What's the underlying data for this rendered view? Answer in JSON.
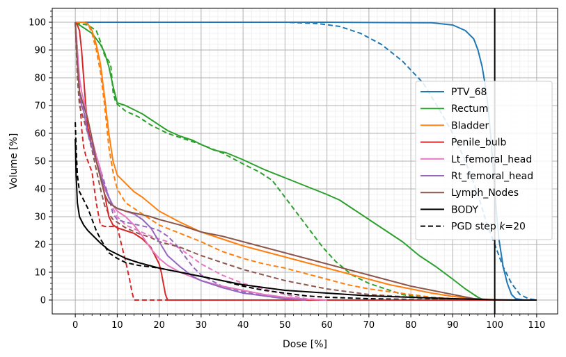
{
  "chart_data": {
    "type": "line",
    "title": "",
    "xlabel": "Dose [%]",
    "ylabel": "Volume [%]",
    "xlim": [
      -5.5,
      115
    ],
    "ylim": [
      -5,
      105
    ],
    "xticks": [
      0,
      10,
      20,
      30,
      40,
      50,
      60,
      70,
      80,
      90,
      100,
      110
    ],
    "yticks": [
      0,
      10,
      20,
      30,
      40,
      50,
      60,
      70,
      80,
      90,
      100
    ],
    "grid": true,
    "vline_x": 100,
    "legend_position": "center-right",
    "legend": [
      {
        "label": "PTV_68",
        "color": "#1f77b4",
        "dashed": false
      },
      {
        "label": "Rectum",
        "color": "#2ca02c",
        "dashed": false
      },
      {
        "label": "Bladder",
        "color": "#ff7f0e",
        "dashed": false
      },
      {
        "label": "Penile_bulb",
        "color": "#d62728",
        "dashed": false
      },
      {
        "label": "Lt_femoral_head",
        "color": "#e377c2",
        "dashed": false
      },
      {
        "label": "Rt_femoral_head",
        "color": "#9467bd",
        "dashed": false
      },
      {
        "label": "Lymph_Nodes",
        "color": "#8c564b",
        "dashed": false
      },
      {
        "label": "BODY",
        "color": "#000000",
        "dashed": false
      },
      {
        "label": "PGD step k=20",
        "label_prefix": "PGD step ",
        "label_var": "k",
        "label_suffix": "=20",
        "color": "#000000",
        "dashed": true
      }
    ],
    "series": [
      {
        "name": "PTV_68",
        "style": "solid",
        "color": "#1f77b4",
        "x": [
          0,
          60,
          85,
          90,
          93,
          95,
          96,
          97,
          98,
          98.5,
          99,
          99.5,
          100,
          100.5,
          101,
          102,
          103,
          104,
          105,
          107,
          110
        ],
        "y": [
          100,
          100,
          99.8,
          99,
          97,
          94,
          90,
          84,
          75,
          68,
          60,
          50,
          40,
          30,
          22,
          12,
          6,
          2,
          0.5,
          0,
          0
        ]
      },
      {
        "name": "PTV_68 PGD",
        "style": "dashed",
        "color": "#1f77b4",
        "x": [
          0,
          50,
          58,
          63,
          68,
          73,
          78,
          83,
          87,
          90,
          93,
          96,
          98,
          100,
          102,
          104,
          106,
          108,
          110
        ],
        "y": [
          100,
          100,
          99.5,
          98.5,
          96,
          92,
          86,
          78,
          68,
          60,
          50,
          38,
          28,
          20,
          12,
          6,
          2,
          0.5,
          0
        ]
      },
      {
        "name": "Rectum",
        "style": "solid",
        "color": "#2ca02c",
        "x": [
          0,
          1,
          2,
          3,
          4,
          5,
          6,
          7,
          8,
          9,
          10,
          12,
          14,
          16,
          18,
          20,
          22,
          25,
          28,
          30,
          33,
          36,
          40,
          45,
          50,
          55,
          60,
          63,
          66,
          70,
          74,
          78,
          82,
          86,
          90,
          93,
          96,
          97,
          98,
          100
        ],
        "y": [
          100,
          99,
          98,
          97,
          96,
          94,
          92,
          89,
          84,
          77,
          71,
          70,
          68.5,
          67,
          65,
          63,
          61,
          59,
          57.5,
          56,
          54,
          53,
          50.5,
          47,
          44,
          41,
          38,
          36,
          33,
          29,
          25,
          21,
          16,
          12,
          7.5,
          4,
          1,
          0.3,
          0,
          0
        ]
      },
      {
        "name": "Rectum PGD",
        "style": "dashed",
        "color": "#2ca02c",
        "x": [
          0,
          1,
          3,
          5,
          6,
          7,
          8,
          8.5,
          9,
          9.5,
          10,
          12,
          15,
          18,
          22,
          26,
          30,
          35,
          40,
          44,
          47,
          50,
          53,
          56,
          59,
          62,
          66,
          70,
          74,
          78,
          82,
          86,
          90,
          95,
          100
        ],
        "y": [
          100,
          99.5,
          99,
          97,
          93,
          88,
          86,
          84,
          75,
          72,
          70.5,
          68,
          66,
          63,
          60,
          58,
          56,
          53,
          49,
          46,
          43,
          37,
          31,
          25,
          19,
          14,
          9,
          6,
          4,
          2,
          1,
          0.5,
          0.2,
          0,
          0
        ]
      },
      {
        "name": "Bladder",
        "style": "solid",
        "color": "#ff7f0e",
        "x": [
          0,
          1,
          2,
          3,
          4,
          5,
          6,
          7,
          8,
          9,
          10,
          12,
          14,
          16,
          18,
          20,
          25,
          30,
          35,
          40,
          45,
          50,
          55,
          60,
          65,
          70,
          75,
          80,
          85,
          90,
          95,
          100
        ],
        "y": [
          100,
          100,
          100,
          99.5,
          97,
          92,
          85,
          73,
          60,
          50,
          45,
          42,
          39,
          37,
          34.5,
          32,
          28,
          24.5,
          22,
          19.5,
          17.5,
          15.5,
          13.5,
          11.5,
          9.5,
          7.5,
          5.5,
          4,
          2.5,
          1.3,
          0.5,
          0.1
        ]
      },
      {
        "name": "Bladder PGD",
        "style": "dashed",
        "color": "#ff7f0e",
        "x": [
          0,
          1,
          2,
          3,
          4,
          5,
          6,
          7,
          8,
          9,
          10,
          12,
          15,
          18,
          20,
          25,
          30,
          35,
          40,
          45,
          50,
          55,
          60,
          65,
          70,
          75,
          80,
          85,
          90,
          95,
          100
        ],
        "y": [
          100,
          100,
          100,
          99.5,
          96,
          90,
          82,
          70,
          55,
          46,
          40,
          35,
          32,
          29,
          27,
          24,
          21,
          17.5,
          15,
          13,
          11.5,
          9.5,
          7.5,
          5.5,
          4,
          3,
          2,
          1,
          0.5,
          0.1,
          0
        ]
      },
      {
        "name": "Penile_bulb",
        "style": "solid",
        "color": "#d62728",
        "x": [
          0,
          0.5,
          1,
          1.5,
          2,
          2.5,
          3,
          4,
          5,
          6,
          7,
          8,
          9,
          10,
          12,
          14,
          16,
          18,
          19,
          20,
          20.5,
          21,
          21.5,
          22,
          25,
          110
        ],
        "y": [
          100,
          99,
          97,
          90,
          80,
          70,
          62,
          55,
          50,
          45,
          38,
          30,
          27,
          26,
          25,
          24,
          22,
          19,
          16,
          13,
          10,
          6,
          2,
          0,
          0,
          0
        ]
      },
      {
        "name": "Penile_bulb PGD",
        "style": "dashed",
        "color": "#d62728",
        "x": [
          0,
          0.5,
          1,
          1.5,
          2,
          2.5,
          3,
          4,
          5,
          6,
          7,
          8,
          9,
          10,
          11,
          12,
          13,
          13.5,
          14,
          14.5,
          20,
          110
        ],
        "y": [
          100,
          90,
          75,
          62,
          55,
          52,
          50,
          46,
          35,
          27,
          26.5,
          26.5,
          26.5,
          26.5,
          20,
          14,
          7,
          3,
          0,
          0,
          0,
          0
        ]
      },
      {
        "name": "Lt_femoral_head",
        "style": "solid",
        "color": "#e377c2",
        "x": [
          0,
          0.5,
          1,
          1.5,
          2,
          3,
          4,
          5,
          6,
          7,
          8,
          9,
          10,
          12,
          14,
          16,
          18,
          20,
          22,
          25,
          30,
          35,
          40,
          45,
          50,
          55,
          60
        ],
        "y": [
          100,
          90,
          80,
          75,
          72,
          65,
          58,
          52,
          47,
          40,
          37,
          34,
          32,
          30,
          27,
          23,
          18.5,
          15,
          12.5,
          10,
          7,
          5,
          3.5,
          2,
          1,
          0.3,
          0
        ]
      },
      {
        "name": "Lt_femoral_head PGD",
        "style": "dashed",
        "color": "#e377c2",
        "x": [
          0,
          0.5,
          1,
          2,
          3,
          4,
          5,
          6,
          7,
          8,
          9,
          10,
          12,
          15,
          18,
          22,
          25,
          30,
          35,
          40,
          45,
          50,
          55,
          60
        ],
        "y": [
          100,
          85,
          75,
          68,
          62,
          57,
          52,
          47,
          42,
          37,
          33,
          30,
          27,
          25,
          23,
          21,
          18.5,
          13,
          9,
          6,
          4,
          2,
          0.5,
          0
        ]
      },
      {
        "name": "Rt_femoral_head",
        "style": "solid",
        "color": "#9467bd",
        "x": [
          0,
          0.5,
          1,
          1.5,
          2,
          3,
          4,
          5,
          6,
          7,
          8,
          9,
          10,
          12,
          14,
          16,
          18,
          20,
          22,
          25,
          28,
          30,
          35,
          40,
          45,
          50,
          55
        ],
        "y": [
          100,
          85,
          75,
          70,
          68,
          60,
          55,
          50,
          45,
          41,
          37,
          34,
          33,
          32,
          31,
          29,
          26,
          21,
          16,
          12,
          8.5,
          7,
          4.5,
          2.5,
          1.5,
          0.5,
          0
        ]
      },
      {
        "name": "Rt_femoral_head PGD",
        "style": "dashed",
        "color": "#9467bd",
        "x": [
          0,
          0.5,
          1,
          2,
          3,
          4,
          5,
          6,
          7,
          8,
          9,
          10,
          12,
          15,
          18,
          20,
          22,
          24,
          26,
          28,
          30,
          35,
          40,
          45,
          50,
          55
        ],
        "y": [
          100,
          85,
          75,
          68,
          62,
          57,
          52,
          47,
          42,
          37,
          31,
          29,
          28,
          27,
          26,
          25,
          23,
          20,
          16,
          12,
          9,
          5,
          3,
          1.5,
          0.5,
          0
        ]
      },
      {
        "name": "Lymph_Nodes",
        "style": "solid",
        "color": "#8c564b",
        "x": [
          0,
          0.5,
          1,
          2,
          3,
          4,
          5,
          6,
          7,
          8,
          9,
          10,
          12,
          15,
          18,
          20,
          25,
          30,
          35,
          40,
          45,
          50,
          55,
          60,
          65,
          70,
          75,
          80,
          85,
          90,
          95,
          100
        ],
        "y": [
          100,
          85,
          75,
          70,
          65,
          58,
          50,
          44,
          38,
          35,
          34,
          33,
          32,
          31,
          30,
          29,
          27,
          24.5,
          23,
          21,
          19,
          17,
          15,
          13,
          11,
          9,
          7,
          5,
          3.5,
          2,
          0.5,
          0
        ]
      },
      {
        "name": "Lymph_Nodes PGD",
        "style": "dashed",
        "color": "#8c564b",
        "x": [
          0,
          0.5,
          1,
          2,
          3,
          4,
          5,
          6,
          7,
          8,
          9,
          10,
          12,
          15,
          18,
          20,
          25,
          30,
          35,
          40,
          45,
          50,
          55,
          60,
          65,
          70,
          75,
          80,
          85,
          90,
          95
        ],
        "y": [
          100,
          80,
          70,
          65,
          60,
          54,
          47,
          40,
          34,
          31,
          29,
          28,
          26,
          24,
          22.5,
          21,
          19,
          16,
          13.5,
          11,
          9,
          7,
          5.5,
          4,
          3,
          2,
          1.5,
          1,
          0.5,
          0.2,
          0
        ]
      },
      {
        "name": "BODY",
        "style": "solid",
        "color": "#000000",
        "x": [
          0,
          0.2,
          0.5,
          1,
          2,
          3,
          4,
          5,
          6,
          8,
          10,
          12,
          15,
          20,
          25,
          30,
          35,
          40,
          45,
          50,
          55,
          60,
          70,
          80,
          90,
          95,
          100,
          105,
          110
        ],
        "y": [
          58,
          45,
          35,
          30,
          27,
          25,
          23.5,
          22,
          20.5,
          18,
          16.5,
          15,
          13.5,
          11.5,
          10,
          8.5,
          7,
          5.5,
          4.5,
          3.5,
          3,
          2.5,
          1.5,
          1,
          0.5,
          0.3,
          0.1,
          0,
          0
        ]
      },
      {
        "name": "BODY PGD",
        "style": "dashed",
        "color": "#000000",
        "x": [
          0,
          0.2,
          0.5,
          1,
          2,
          3,
          4,
          5,
          6,
          8,
          10,
          12,
          15,
          20,
          25,
          30,
          35,
          40,
          45,
          50,
          55,
          60,
          70,
          80,
          90,
          100
        ],
        "y": [
          64,
          55,
          45,
          39,
          36,
          33,
          29,
          25,
          22,
          17,
          15,
          13.5,
          12.5,
          11.5,
          10,
          8.5,
          7,
          5,
          3.5,
          2.5,
          1.5,
          1,
          0.5,
          0.2,
          0,
          0
        ]
      }
    ]
  }
}
